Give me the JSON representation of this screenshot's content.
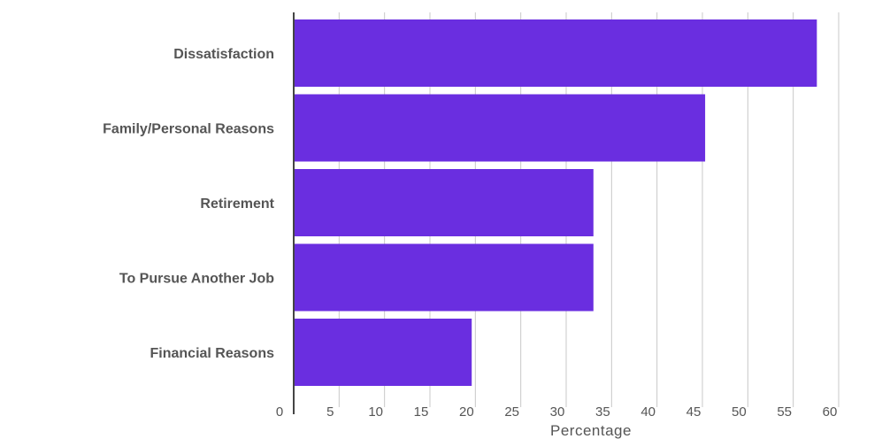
{
  "chart_data": {
    "type": "bar",
    "orientation": "horizontal",
    "categories": [
      "Dissatisfaction",
      "Family/Personal Reasons",
      "Retirement",
      "To Pursue Another Job",
      "Financial Reasons"
    ],
    "values": [
      57.6,
      45.3,
      33.0,
      33.0,
      19.6
    ],
    "xlabel": "Percentage",
    "ylabel": "",
    "title": "",
    "xlim": [
      0,
      60
    ],
    "xticks": [
      0,
      5,
      10,
      15,
      20,
      25,
      30,
      35,
      40,
      45,
      50,
      55,
      60
    ],
    "grid": "vertical",
    "bar_color": "#6a2ee0"
  }
}
